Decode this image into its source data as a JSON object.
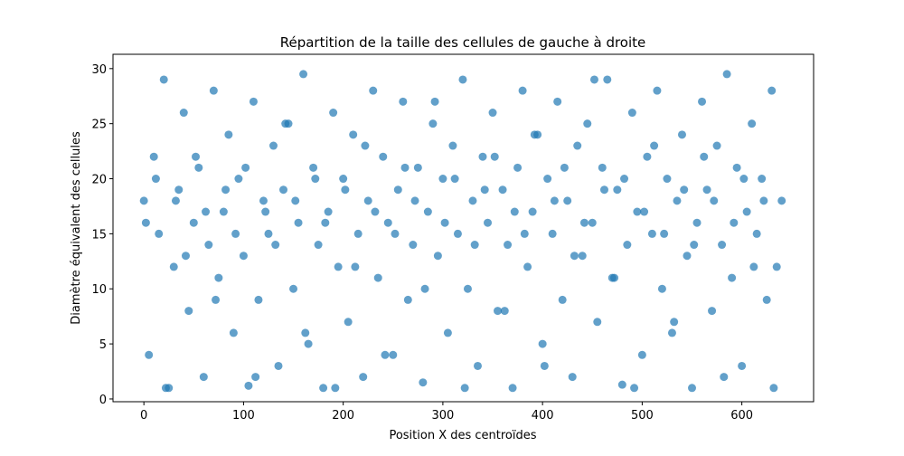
{
  "chart_data": {
    "type": "scatter",
    "title": "Répartition de la taille des cellules de gauche à droite",
    "x_label": "Position X des centroïdes",
    "y_label": "Diamètre équivalent des cellules",
    "color": "#1f77b4",
    "xlim": [
      -31,
      672
    ],
    "ylim": [
      -0.25,
      31.3
    ],
    "xticks": [
      0,
      100,
      200,
      300,
      400,
      500,
      600
    ],
    "yticks": [
      0,
      5,
      10,
      15,
      20,
      25,
      30
    ],
    "x": [
      0,
      5,
      10,
      15,
      20,
      25,
      30,
      35,
      40,
      45,
      50,
      55,
      60,
      65,
      70,
      75,
      80,
      85,
      90,
      95,
      100,
      105,
      110,
      115,
      120,
      125,
      130,
      135,
      140,
      145,
      150,
      155,
      160,
      165,
      170,
      175,
      180,
      185,
      190,
      195,
      200,
      205,
      210,
      215,
      220,
      225,
      230,
      235,
      240,
      245,
      250,
      255,
      260,
      265,
      270,
      275,
      280,
      285,
      290,
      295,
      300,
      305,
      310,
      315,
      320,
      325,
      330,
      335,
      340,
      345,
      350,
      355,
      360,
      365,
      370,
      375,
      380,
      385,
      390,
      395,
      400,
      405,
      410,
      415,
      420,
      425,
      430,
      435,
      440,
      445,
      450,
      455,
      460,
      465,
      470,
      475,
      480,
      485,
      490,
      495,
      500,
      505,
      510,
      515,
      520,
      525,
      530,
      535,
      540,
      545,
      550,
      555,
      560,
      565,
      570,
      575,
      580,
      585,
      590,
      595,
      600,
      605,
      610,
      615,
      620,
      625,
      630,
      635,
      640,
      2,
      12,
      22,
      32,
      42,
      52,
      62,
      72,
      82,
      92,
      102,
      112,
      122,
      132,
      142,
      152,
      162,
      172,
      182,
      192,
      202,
      212,
      222,
      232,
      242,
      252,
      262,
      272,
      282,
      292,
      302,
      312,
      322,
      332,
      342,
      352,
      362,
      372,
      382,
      392,
      402,
      412,
      422,
      432,
      442,
      452,
      462,
      472,
      482,
      492,
      502,
      512,
      522,
      532,
      542,
      552,
      562,
      572,
      582,
      592,
      602,
      612,
      622,
      632
    ],
    "y": [
      18,
      4,
      22,
      15,
      29,
      1,
      12,
      19,
      26,
      8,
      16,
      21,
      2,
      14,
      28,
      11,
      17,
      24,
      6,
      20,
      13,
      1.2,
      27,
      9,
      18,
      15,
      23,
      3,
      19,
      25,
      10,
      16,
      29.5,
      5,
      21,
      14,
      1,
      17,
      26,
      12,
      20,
      7,
      24,
      15,
      2,
      18,
      28,
      11,
      22,
      16,
      4,
      19,
      27,
      9,
      14,
      21,
      1.5,
      17,
      25,
      13,
      20,
      6,
      23,
      15,
      29,
      10,
      18,
      3,
      22,
      16,
      26,
      8,
      19,
      14,
      1,
      21,
      28,
      12,
      17,
      24,
      5,
      20,
      15,
      27,
      9,
      18,
      2,
      23,
      13,
      25,
      16,
      7,
      21,
      29,
      11,
      19,
      1.3,
      14,
      26,
      17,
      4,
      22,
      15,
      28,
      10,
      20,
      6,
      18,
      24,
      13,
      1,
      16,
      27,
      19,
      8,
      23,
      14,
      29.5,
      11,
      21,
      3,
      17,
      25,
      15,
      20,
      9,
      28,
      12,
      18,
      16,
      20,
      1,
      18,
      13,
      22,
      17,
      9,
      19,
      15,
      21,
      2,
      17,
      14,
      25,
      18,
      6,
      20,
      16,
      1,
      19,
      12,
      23,
      17,
      4,
      15,
      21,
      18,
      10,
      27,
      16,
      20,
      1,
      14,
      19,
      22,
      8,
      17,
      15,
      24,
      3,
      18,
      21,
      13,
      16,
      29,
      19,
      11,
      20,
      1,
      17,
      23,
      15,
      7,
      19,
      14,
      22,
      18,
      2,
      16,
      20,
      12,
      18,
      1
    ]
  }
}
